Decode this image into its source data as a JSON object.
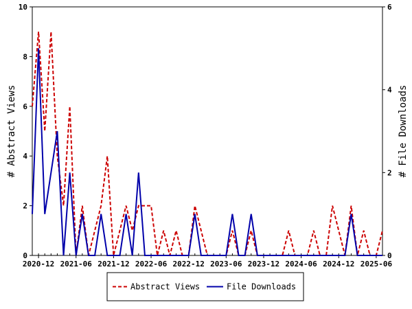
{
  "chart_data": {
    "type": "line",
    "ylabel": "# Abstract Views",
    "y2label": "# File Downloads",
    "ylim": [
      0,
      10
    ],
    "y2lim": [
      0,
      6
    ],
    "yticks": [
      0,
      2,
      4,
      6,
      8,
      10
    ],
    "y2ticks": [
      0,
      2,
      4,
      6
    ],
    "xtick_labels": [
      "2020-12",
      "2021-06",
      "2021-12",
      "2022-06",
      "2022-12",
      "2023-06",
      "2023-12",
      "2024-06",
      "2024-12",
      "2025-06"
    ],
    "grid": false,
    "legend_placement": "bottom",
    "series": [
      {
        "name": "Abstract Views",
        "axis": "left",
        "color": "#cc0000",
        "style": "dashed",
        "x": [
          "2020-11",
          "2020-12",
          "2021-01",
          "2021-02",
          "2021-03",
          "2021-04",
          "2021-05",
          "2021-06",
          "2021-07",
          "2021-08",
          "2021-09",
          "2021-10",
          "2021-11",
          "2021-12",
          "2022-01",
          "2022-02",
          "2022-03",
          "2022-04",
          "2022-05",
          "2022-06",
          "2022-07",
          "2022-08",
          "2022-09",
          "2022-10",
          "2022-11",
          "2022-12",
          "2023-01",
          "2023-02",
          "2023-03",
          "2023-04",
          "2023-05",
          "2023-06",
          "2023-07",
          "2023-08",
          "2023-09",
          "2023-10",
          "2023-11",
          "2023-12",
          "2024-01",
          "2024-02",
          "2024-03",
          "2024-04",
          "2024-05",
          "2024-06",
          "2024-07",
          "2024-08",
          "2024-09",
          "2024-10",
          "2024-11",
          "2024-12",
          "2025-01",
          "2025-02",
          "2025-03",
          "2025-04",
          "2025-05",
          "2025-06",
          "2025-07"
        ],
        "values": [
          6,
          9,
          5,
          9,
          4,
          2,
          6,
          0,
          2,
          0,
          1,
          2,
          4,
          0,
          1,
          2,
          1,
          2,
          2,
          2,
          0,
          1,
          0,
          1,
          0,
          0,
          2,
          1,
          0,
          0,
          0,
          0,
          1,
          0,
          0,
          1,
          0,
          0,
          0,
          0,
          0,
          1,
          0,
          0,
          0,
          1,
          0,
          0,
          2,
          1,
          0,
          2,
          0,
          1,
          0,
          0,
          1
        ]
      },
      {
        "name": "File Downloads",
        "axis": "right",
        "color": "#0000aa",
        "style": "solid",
        "x": [
          "2020-11",
          "2020-12",
          "2021-01",
          "2021-02",
          "2021-03",
          "2021-04",
          "2021-05",
          "2021-06",
          "2021-07",
          "2021-08",
          "2021-09",
          "2021-10",
          "2021-11",
          "2021-12",
          "2022-01",
          "2022-02",
          "2022-03",
          "2022-04",
          "2022-05",
          "2022-06",
          "2022-07",
          "2022-08",
          "2022-09",
          "2022-10",
          "2022-11",
          "2022-12",
          "2023-01",
          "2023-02",
          "2023-03",
          "2023-04",
          "2023-05",
          "2023-06",
          "2023-07",
          "2023-08",
          "2023-09",
          "2023-10",
          "2023-11",
          "2023-12",
          "2024-01",
          "2024-02",
          "2024-03",
          "2024-04",
          "2024-05",
          "2024-06",
          "2024-07",
          "2024-08",
          "2024-09",
          "2024-10",
          "2024-11",
          "2024-12",
          "2025-01",
          "2025-02",
          "2025-03",
          "2025-04",
          "2025-05",
          "2025-06",
          "2025-07"
        ],
        "values": [
          1,
          5,
          1,
          2,
          3,
          0,
          2,
          0,
          1,
          0,
          0,
          1,
          0,
          0,
          0,
          1,
          0,
          2,
          0,
          0,
          0,
          0,
          0,
          0,
          0,
          0,
          1,
          0,
          0,
          0,
          0,
          0,
          1,
          0,
          0,
          1,
          0,
          0,
          0,
          0,
          0,
          0,
          0,
          0,
          0,
          0,
          0,
          0,
          0,
          0,
          0,
          1,
          0,
          0,
          0,
          0,
          0
        ]
      }
    ]
  }
}
